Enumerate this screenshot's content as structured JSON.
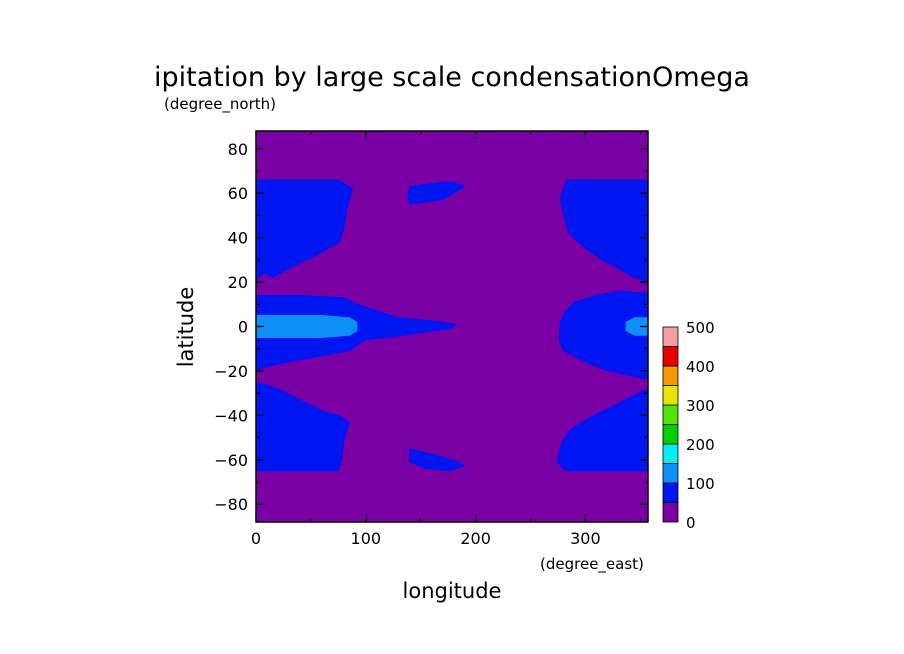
{
  "chart_data": {
    "type": "heatmap",
    "title": "ipitation by large scale condensationOmega",
    "xlabel": "longitude",
    "ylabel": "latitude",
    "x_unit": "(degree_east)",
    "y_unit": "(degree_north)",
    "xlim": [
      0,
      357
    ],
    "ylim": [
      -88,
      88
    ],
    "x_ticks": [
      0,
      100,
      200,
      300
    ],
    "x_tick_labels": [
      "0",
      "100",
      "200",
      "300"
    ],
    "y_ticks": [
      80,
      60,
      40,
      20,
      0,
      -20,
      -40,
      -60,
      -80
    ],
    "y_tick_labels": [
      "80",
      "60",
      "40",
      "20",
      "0",
      "−20",
      "−40",
      "−60",
      "−80"
    ],
    "colorbar": {
      "levels": [
        0,
        50,
        100,
        150,
        200,
        250,
        300,
        350,
        400,
        450,
        500
      ],
      "tick_values": [
        0,
        100,
        200,
        300,
        400,
        500
      ],
      "tick_labels": [
        "0",
        "100",
        "200",
        "300",
        "400",
        "500"
      ],
      "colors": [
        "#7a00a6",
        "#0016f0",
        "#0d8ff5",
        "#00f0f0",
        "#00d000",
        "#50e600",
        "#e6e600",
        "#f59a00",
        "#e60000",
        "#f5a0a0"
      ]
    },
    "regions": [
      {
        "level": 1,
        "color": "#0016f0",
        "polygon": [
          [
            0,
            66
          ],
          [
            40,
            66
          ],
          [
            75,
            66
          ],
          [
            88,
            62
          ],
          [
            83,
            53
          ],
          [
            80,
            44
          ],
          [
            76,
            38
          ],
          [
            55,
            32
          ],
          [
            30,
            26
          ],
          [
            15,
            22
          ],
          [
            8,
            24
          ],
          [
            2,
            22
          ],
          [
            0,
            20
          ]
        ]
      },
      {
        "level": 1,
        "color": "#0016f0",
        "polygon": [
          [
            0,
            14
          ],
          [
            40,
            14
          ],
          [
            80,
            13
          ],
          [
            88,
            11
          ],
          [
            110,
            7
          ],
          [
            130,
            4
          ],
          [
            150,
            3
          ],
          [
            170,
            2
          ],
          [
            182,
            1
          ],
          [
            178,
            -1
          ],
          [
            160,
            -2
          ],
          [
            135,
            -4
          ],
          [
            100,
            -6
          ],
          [
            85,
            -11
          ],
          [
            40,
            -15
          ],
          [
            10,
            -18
          ],
          [
            0,
            -20
          ]
        ]
      },
      {
        "level": 2,
        "color": "#0d8ff5",
        "polygon": [
          [
            0,
            5
          ],
          [
            60,
            5
          ],
          [
            85,
            4
          ],
          [
            92,
            2
          ],
          [
            92,
            -2
          ],
          [
            85,
            -4
          ],
          [
            60,
            -5
          ],
          [
            0,
            -5
          ]
        ]
      },
      {
        "level": 1,
        "color": "#0016f0",
        "polygon": [
          [
            0,
            -25
          ],
          [
            20,
            -28
          ],
          [
            40,
            -33
          ],
          [
            60,
            -38
          ],
          [
            75,
            -40
          ],
          [
            85,
            -43
          ],
          [
            80,
            -52
          ],
          [
            78,
            -60
          ],
          [
            75,
            -65
          ],
          [
            0,
            -65
          ]
        ]
      },
      {
        "level": 1,
        "color": "#0016f0",
        "polygon": [
          [
            140,
            63
          ],
          [
            170,
            65
          ],
          [
            180,
            65
          ],
          [
            190,
            63
          ],
          [
            180,
            60
          ],
          [
            170,
            57
          ],
          [
            155,
            56
          ],
          [
            140,
            55
          ],
          [
            138,
            59
          ]
        ]
      },
      {
        "level": 1,
        "color": "#0016f0",
        "polygon": [
          [
            140,
            -55
          ],
          [
            165,
            -58
          ],
          [
            185,
            -61
          ],
          [
            190,
            -63
          ],
          [
            175,
            -65
          ],
          [
            155,
            -64
          ],
          [
            140,
            -61
          ]
        ]
      },
      {
        "level": 1,
        "color": "#0016f0",
        "polygon": [
          [
            277,
            58
          ],
          [
            283,
            66
          ],
          [
            357,
            66
          ],
          [
            357,
            20
          ],
          [
            345,
            22
          ],
          [
            330,
            26
          ],
          [
            315,
            30
          ],
          [
            300,
            35
          ],
          [
            285,
            42
          ],
          [
            280,
            50
          ]
        ]
      },
      {
        "level": 1,
        "color": "#0016f0",
        "polygon": [
          [
            357,
            15
          ],
          [
            330,
            16
          ],
          [
            310,
            14
          ],
          [
            290,
            11
          ],
          [
            282,
            7
          ],
          [
            277,
            2
          ],
          [
            276,
            -6
          ],
          [
            280,
            -11
          ],
          [
            300,
            -16
          ],
          [
            320,
            -20
          ],
          [
            340,
            -22
          ],
          [
            357,
            -24
          ]
        ]
      },
      {
        "level": 2,
        "color": "#0d8ff5",
        "polygon": [
          [
            357,
            4
          ],
          [
            345,
            4
          ],
          [
            337,
            2
          ],
          [
            337,
            -2
          ],
          [
            345,
            -4
          ],
          [
            357,
            -4
          ]
        ]
      },
      {
        "level": 1,
        "color": "#0016f0",
        "polygon": [
          [
            357,
            -28
          ],
          [
            340,
            -32
          ],
          [
            320,
            -37
          ],
          [
            300,
            -42
          ],
          [
            285,
            -47
          ],
          [
            278,
            -53
          ],
          [
            274,
            -61
          ],
          [
            282,
            -65
          ],
          [
            357,
            -65
          ]
        ]
      }
    ]
  }
}
